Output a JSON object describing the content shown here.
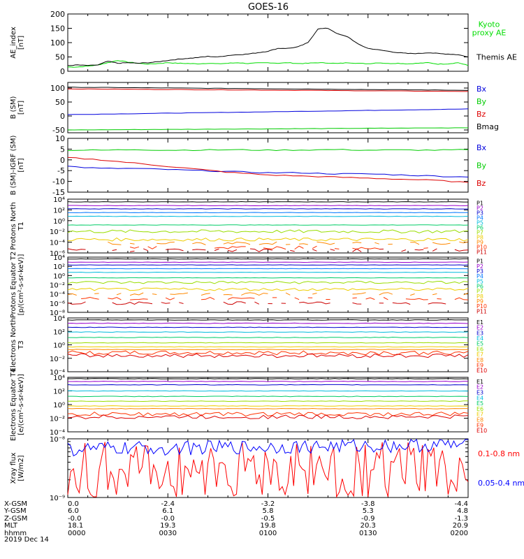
{
  "title": "GOES-16",
  "date": "2019 Dec 14",
  "ephemeris": {
    "labels": [
      "X-GSM",
      "Y-GSM",
      "Z-GSM",
      "MLT",
      "hhmm"
    ],
    "rows": [
      [
        "0.0",
        "-2.4",
        "-3.2",
        "-3.8",
        "-4.4"
      ],
      [
        "6.0",
        "6.1",
        "5.8",
        "5.3",
        "4.8"
      ],
      [
        "-0.0",
        "-0.0",
        "-0.5",
        "-0.9",
        "-1.3"
      ],
      [
        "18.1",
        "19.3",
        "19.8",
        "20.3",
        "20.9"
      ],
      [
        "0000",
        "0030",
        "0100",
        "0130",
        "0200"
      ]
    ]
  },
  "chart_data": [
    {
      "type": "line",
      "panel": "ae",
      "ylabel": "AE_index [nT]",
      "ylim": [
        0,
        200
      ],
      "yticks": [
        "0",
        "50",
        "100",
        "150",
        "200"
      ],
      "x": [
        0,
        3,
        6,
        9,
        12,
        15,
        18,
        21,
        24,
        27,
        30,
        33,
        36,
        39,
        42,
        45,
        48,
        51,
        54,
        57,
        60,
        63,
        66,
        69,
        72,
        75,
        78,
        81,
        84,
        87,
        90,
        93,
        96,
        99,
        102,
        105,
        108,
        111,
        114,
        117,
        120
      ],
      "series": [
        {
          "name": "Kyoto proxy AE",
          "color": "#00dd00",
          "values": [
            15,
            15,
            18,
            22,
            30,
            38,
            32,
            28,
            25,
            27,
            30,
            28,
            27,
            26,
            28,
            26,
            28,
            30,
            27,
            29,
            30,
            28,
            30,
            27,
            28,
            30,
            29,
            27,
            30,
            28,
            26,
            30,
            27,
            28,
            26,
            28,
            30,
            25,
            26,
            30,
            20
          ]
        },
        {
          "name": "Themis AE",
          "color": "#000000",
          "values": [
            20,
            22,
            20,
            22,
            35,
            28,
            30,
            28,
            30,
            33,
            38,
            42,
            45,
            48,
            52,
            50,
            55,
            58,
            60,
            65,
            70,
            80,
            80,
            85,
            100,
            148,
            150,
            130,
            120,
            95,
            80,
            75,
            70,
            65,
            62,
            62,
            65,
            62,
            60,
            58,
            50
          ]
        }
      ]
    },
    {
      "type": "line",
      "panel": "b",
      "ylabel": "B (SM) [nT]",
      "ylim": [
        -60,
        120
      ],
      "yticks": [
        "-50",
        "0",
        "50",
        "100"
      ],
      "x": [
        0,
        120
      ],
      "series": [
        {
          "name": "Bx",
          "color": "#0000dd",
          "values": [
            5,
            25
          ]
        },
        {
          "name": "By",
          "color": "#00cc00",
          "values": [
            -50,
            -42
          ]
        },
        {
          "name": "Bz",
          "color": "#dd0000",
          "values": [
            97,
            88
          ]
        },
        {
          "name": "Bmag",
          "color": "#000000",
          "values": [
            103,
            92
          ]
        }
      ]
    },
    {
      "type": "line",
      "panel": "db",
      "ylabel": "B (SM)-IGRF (SM) [nT]",
      "ylim": [
        -15,
        10
      ],
      "yticks": [
        "-15",
        "-10",
        "-5",
        "0",
        "5",
        "10"
      ],
      "x": [
        0,
        10,
        20,
        30,
        40,
        50,
        60,
        70,
        80,
        90,
        100,
        110,
        120
      ],
      "series": [
        {
          "name": "Bx",
          "color": "#0000dd",
          "values": [
            -3,
            -4,
            -4,
            -4.5,
            -5,
            -5.5,
            -6,
            -6,
            -6.5,
            -6.5,
            -7,
            -7.5,
            -8
          ]
        },
        {
          "name": "By",
          "color": "#00cc00",
          "values": [
            4.5,
            4.5,
            4.8,
            4.5,
            4.6,
            4.7,
            4.5,
            4.6,
            4.8,
            4.5,
            4.6,
            4.5,
            4.7
          ]
        },
        {
          "name": "Bz",
          "color": "#dd0000",
          "values": [
            1,
            0,
            -1.5,
            -3,
            -4.5,
            -6,
            -7,
            -7.5,
            -8,
            -8.5,
            -9,
            -9.5,
            -10.5
          ]
        }
      ]
    },
    {
      "type": "line",
      "panel": "protons1",
      "ylabel": "Protons North T1",
      "log": true,
      "ylim_exp": [
        -6,
        4
      ],
      "yticks": [
        [
          4,
          "10⁴"
        ],
        [
          2,
          "10²"
        ],
        [
          0,
          "10⁰"
        ],
        [
          -2,
          "10⁻²"
        ],
        [
          -4,
          "10⁻⁴"
        ],
        [
          -6,
          "10⁻⁶"
        ]
      ],
      "channels": [
        {
          "name": "P1",
          "color": "#000000",
          "level": 3.5
        },
        {
          "name": "P2",
          "color": "#9900cc",
          "level": 2.8
        },
        {
          "name": "P3",
          "color": "#0000cc",
          "level": 2.2
        },
        {
          "name": "P4",
          "color": "#0077ff",
          "level": 1.5
        },
        {
          "name": "P5",
          "color": "#00bbdd",
          "level": 0.8
        },
        {
          "name": "P6",
          "color": "#00cc66",
          "level": -0.8
        },
        {
          "name": "P7",
          "color": "#99dd00",
          "level": -2.0
        },
        {
          "name": "P8",
          "color": "#eecc00",
          "level": -3.5
        },
        {
          "name": "P9",
          "color": "#ff8800",
          "level": -4.2
        },
        {
          "name": "P10",
          "color": "#ff3300",
          "level": -5.0
        },
        {
          "name": "P11",
          "color": "#cc0000",
          "level": -5.5
        }
      ]
    },
    {
      "type": "line",
      "panel": "protons2",
      "ylabel": "Protons Equator T2 [p/(cm²-s-sr-keV)]",
      "log": true,
      "ylim_exp": [
        -8,
        4
      ],
      "yticks": [
        [
          4,
          "10⁴"
        ],
        [
          2,
          "10²"
        ],
        [
          0,
          "10⁰"
        ],
        [
          -2,
          "10⁻²"
        ],
        [
          -4,
          "10⁻⁴"
        ],
        [
          -6,
          "10⁻⁶"
        ],
        [
          -8,
          "10⁻⁸"
        ]
      ],
      "channels": [
        {
          "name": "P1",
          "color": "#000000",
          "level": 3.6
        },
        {
          "name": "P2",
          "color": "#9900cc",
          "level": 2.9
        },
        {
          "name": "P3",
          "color": "#0000cc",
          "level": 2.3
        },
        {
          "name": "P4",
          "color": "#0077ff",
          "level": 1.5
        },
        {
          "name": "P5",
          "color": "#00bbdd",
          "level": 0.7
        },
        {
          "name": "P6",
          "color": "#00cc66",
          "level": -0.5
        },
        {
          "name": "P7",
          "color": "#99dd00",
          "level": -1.5
        },
        {
          "name": "P8",
          "color": "#eecc00",
          "level": -3.0
        },
        {
          "name": "P9",
          "color": "#ff8800",
          "level": -4.0
        },
        {
          "name": "P10",
          "color": "#ff3300",
          "level": -5.0
        },
        {
          "name": "P11",
          "color": "#cc0000",
          "level": -6.0
        }
      ]
    },
    {
      "type": "line",
      "panel": "electrons1",
      "ylabel": "Electrons North T3",
      "log": true,
      "ylim_exp": [
        -4,
        4
      ],
      "yticks": [
        [
          4,
          "10⁴"
        ],
        [
          2,
          "10²"
        ],
        [
          0,
          "10⁰"
        ],
        [
          -2,
          "10⁻²"
        ],
        [
          -4,
          "10⁻⁴"
        ]
      ],
      "channels": [
        {
          "name": "E1",
          "color": "#000000",
          "level": 3.7
        },
        {
          "name": "E2",
          "color": "#9900cc",
          "level": 3.2
        },
        {
          "name": "E3",
          "color": "#0000cc",
          "level": 2.6
        },
        {
          "name": "E4",
          "color": "#00bbdd",
          "level": 1.9
        },
        {
          "name": "E5",
          "color": "#00cc66",
          "level": 1.1
        },
        {
          "name": "E6",
          "color": "#99dd00",
          "level": 0.3
        },
        {
          "name": "E7",
          "color": "#eecc00",
          "level": -0.3
        },
        {
          "name": "E8",
          "color": "#ff8800",
          "level": -0.7
        },
        {
          "name": "E9",
          "color": "#ff3300",
          "level": -1.2
        },
        {
          "name": "E10",
          "color": "#dd0000",
          "level": -1.6
        }
      ]
    },
    {
      "type": "line",
      "panel": "electrons2",
      "ylabel": "Electrons Equator T4 [e/(cm²-s-sr-keV)]",
      "log": true,
      "ylim_exp": [
        -4,
        4
      ],
      "yticks": [
        [
          4,
          "10⁴"
        ],
        [
          2,
          "10²"
        ],
        [
          0,
          "10⁰"
        ],
        [
          -2,
          "10⁻²"
        ],
        [
          -4,
          "10⁻⁴"
        ]
      ],
      "channels": [
        {
          "name": "E1",
          "color": "#000000",
          "level": 3.8
        },
        {
          "name": "E2",
          "color": "#9900cc",
          "level": 3.4
        },
        {
          "name": "E3",
          "color": "#0000cc",
          "level": 2.9
        },
        {
          "name": "E4",
          "color": "#00bbdd",
          "level": 2.0
        },
        {
          "name": "E5",
          "color": "#00cc66",
          "level": 1.2
        },
        {
          "name": "E6",
          "color": "#99dd00",
          "level": 0.5
        },
        {
          "name": "E7",
          "color": "#eecc00",
          "level": -0.2
        },
        {
          "name": "E8",
          "color": "#ff8800",
          "level": -0.6
        },
        {
          "name": "E9",
          "color": "#ff3300",
          "level": -1.4
        },
        {
          "name": "E10",
          "color": "#dd0000",
          "level": -1.8
        }
      ]
    },
    {
      "type": "line",
      "panel": "xray",
      "ylabel": "Xray flux [W/m2]",
      "log": true,
      "ylim_exp": [
        -9,
        -8
      ],
      "yticks": [
        [
          -8,
          "10⁻⁸"
        ],
        [
          -9,
          "10⁻⁹"
        ]
      ],
      "series": [
        {
          "name": "0.1-0.8 nm",
          "color": "#ff0000",
          "level": -8.55
        },
        {
          "name": "0.05-0.4 nm",
          "color": "#0000ff",
          "level": -8.18
        }
      ]
    }
  ],
  "panel_legends": {
    "ae": [
      [
        "Kyoto proxy AE",
        "#00dd00"
      ],
      [
        "Themis AE",
        "#000000"
      ]
    ],
    "b": [
      [
        "Bx",
        "#0000dd"
      ],
      [
        "By",
        "#00cc00"
      ],
      [
        "Bz",
        "#dd0000"
      ],
      [
        "Bmag",
        "#000000"
      ]
    ],
    "db": [
      [
        "Bx",
        "#0000dd"
      ],
      [
        "By",
        "#00cc00"
      ],
      [
        "Bz",
        "#dd0000"
      ]
    ],
    "xray": [
      [
        "0.1-0.8 nm",
        "#ff0000"
      ],
      [
        "0.05-0.4 nm",
        "#0000ff"
      ]
    ]
  }
}
